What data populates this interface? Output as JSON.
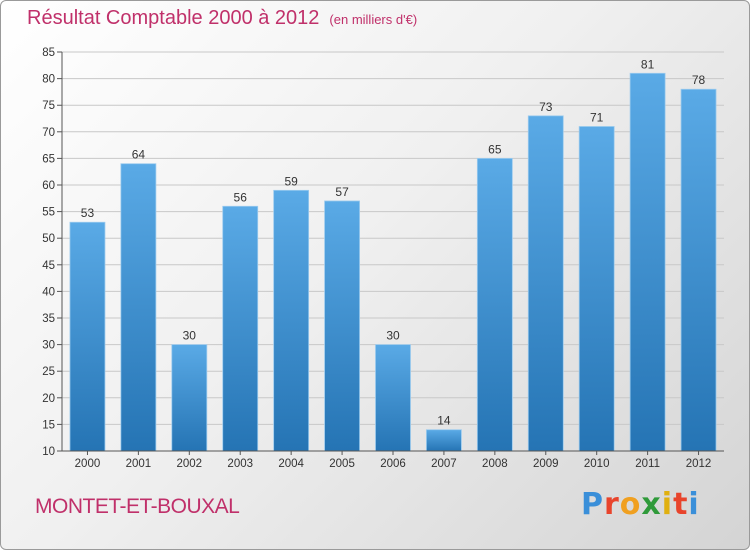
{
  "header": {
    "title": "Résultat Comptable 2000 à 2012",
    "unit": "(en milliers d'€)"
  },
  "footer": {
    "commune": "MONTET-ET-BOUXAL",
    "logo": [
      "P",
      "r",
      "o",
      "x",
      "i",
      "t",
      "i"
    ],
    "logo_colors": [
      "#3a8fd9",
      "#e8442c",
      "#f0a020",
      "#2f9a3a",
      "#e0b010",
      "#e8442c",
      "#3a8fd9"
    ]
  },
  "chart_data": {
    "type": "bar",
    "title": "Résultat Comptable 2000 à 2012",
    "unit": "(en milliers d'€)",
    "categories": [
      "2000",
      "2001",
      "2002",
      "2003",
      "2004",
      "2005",
      "2006",
      "2007",
      "2008",
      "2009",
      "2010",
      "2011",
      "2012"
    ],
    "values": [
      53,
      64,
      30,
      56,
      59,
      57,
      30,
      14,
      65,
      73,
      71,
      81,
      78
    ],
    "ylim": [
      10,
      85
    ],
    "yticks": [
      10,
      15,
      20,
      25,
      30,
      35,
      40,
      45,
      50,
      55,
      60,
      65,
      70,
      75,
      80,
      85
    ],
    "grid": true,
    "bar_color_top": "#5aaae6",
    "bar_color_bottom": "#2574b4"
  }
}
